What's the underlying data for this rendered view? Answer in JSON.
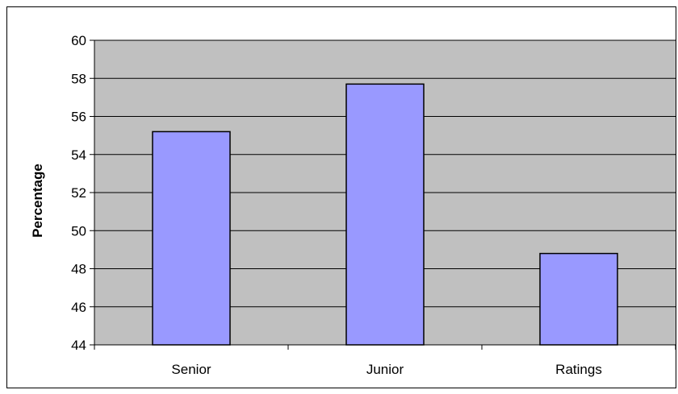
{
  "chart_data": {
    "type": "bar",
    "categories": [
      "Senior",
      "Junior",
      "Ratings"
    ],
    "values": [
      55.2,
      57.7,
      48.8
    ],
    "title": "",
    "xlabel": "",
    "ylabel": "Percentage",
    "ylim": [
      44,
      60
    ],
    "yticks": [
      "44",
      "46",
      "48",
      "50",
      "52",
      "54",
      "56",
      "58",
      "60"
    ],
    "grid": true,
    "legend": "none",
    "colors": {
      "plot_background": "#c0c0c0",
      "bar_fill": "#9999ff",
      "bar_stroke": "#000000",
      "grid": "#000000"
    }
  }
}
